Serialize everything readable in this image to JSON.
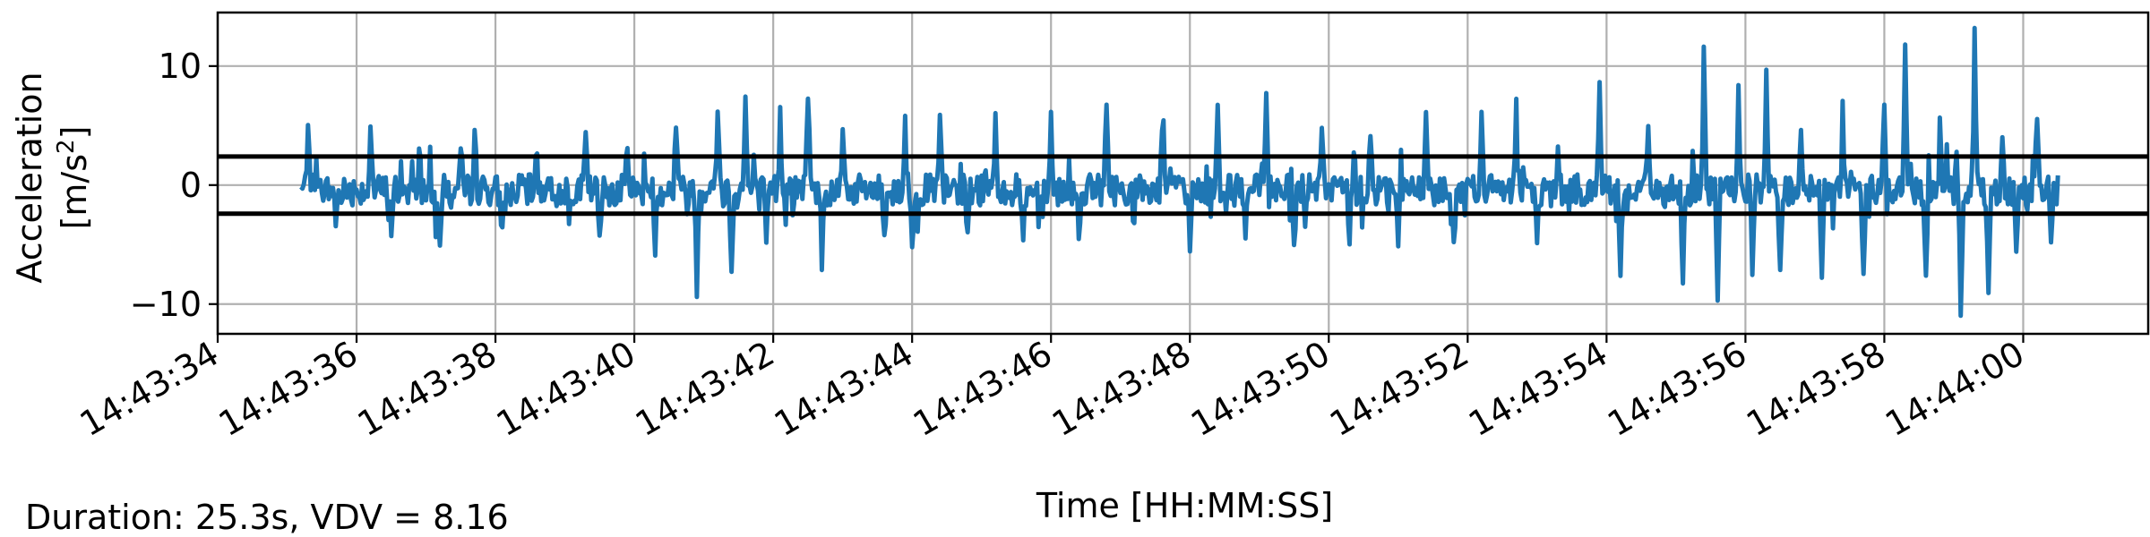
{
  "chart_data": {
    "type": "line",
    "title": "",
    "xlabel": "Time [HH:MM:SS]",
    "ylabel": "Acceleration",
    "ylabel_unit": "[m/s",
    "ylabel_unit_sup": "2",
    "ylabel_unit_close": "]",
    "ylim": [
      -12.5,
      14.5
    ],
    "xlim": [
      "14:43:34.0",
      "14:44:01.8"
    ],
    "grid": true,
    "yticks": [
      -10,
      0,
      10
    ],
    "ytick_labels": [
      "−10",
      "0",
      "10"
    ],
    "xtick_labels": [
      "14:43:34",
      "14:43:36",
      "14:43:38",
      "14:43:40",
      "14:43:42",
      "14:43:44",
      "14:43:46",
      "14:43:48",
      "14:43:50",
      "14:43:52",
      "14:43:54",
      "14:43:56",
      "14:43:58",
      "14:44:00"
    ],
    "series_color": "#1f77b4",
    "thresholds": [
      2.4,
      -2.4
    ],
    "threshold_color": "#000000",
    "time_start": "14:43:35.2",
    "time_end": "14:44:00.5",
    "sample_interval_s": 0.02,
    "peaks": [
      {
        "t": "14:43:35.3",
        "v": 6.2
      },
      {
        "t": "14:43:35.7",
        "v": -2.8
      },
      {
        "t": "14:43:36.2",
        "v": 5.9
      },
      {
        "t": "14:43:36.5",
        "v": -3.2
      },
      {
        "t": "14:43:36.9",
        "v": 4.6
      },
      {
        "t": "14:43:37.2",
        "v": -4.2
      },
      {
        "t": "14:43:37.5",
        "v": 3.4
      },
      {
        "t": "14:43:37.7",
        "v": 6.3
      },
      {
        "t": "14:43:38.1",
        "v": -3.8
      },
      {
        "t": "14:43:38.6",
        "v": 3.9
      },
      {
        "t": "14:43:39.3",
        "v": 4.4
      },
      {
        "t": "14:43:39.5",
        "v": -4.9
      },
      {
        "t": "14:43:39.9",
        "v": 5.4
      },
      {
        "t": "14:43:40.3",
        "v": -4.4
      },
      {
        "t": "14:43:40.6",
        "v": 6.2
      },
      {
        "t": "14:43:40.9",
        "v": -7.7
      },
      {
        "t": "14:43:41.2",
        "v": 7.9
      },
      {
        "t": "14:43:41.4",
        "v": -6.3
      },
      {
        "t": "14:43:41.6",
        "v": 7.6
      },
      {
        "t": "14:43:41.9",
        "v": -5.6
      },
      {
        "t": "14:43:42.1",
        "v": 5.8
      },
      {
        "t": "14:43:42.5",
        "v": 8.2
      },
      {
        "t": "14:43:42.7",
        "v": -5.9
      },
      {
        "t": "14:43:43.0",
        "v": 6.1
      },
      {
        "t": "14:43:43.6",
        "v": -4.1
      },
      {
        "t": "14:43:43.9",
        "v": 5.6
      },
      {
        "t": "14:43:44.0",
        "v": -5.3
      },
      {
        "t": "14:43:44.4",
        "v": 5.9
      },
      {
        "t": "14:43:44.8",
        "v": -4.5
      },
      {
        "t": "14:43:45.2",
        "v": 5.8
      },
      {
        "t": "14:43:45.6",
        "v": -4.9
      },
      {
        "t": "14:43:46.0",
        "v": 6.0
      },
      {
        "t": "14:43:46.4",
        "v": -4.8
      },
      {
        "t": "14:43:46.8",
        "v": 7.8
      },
      {
        "t": "14:43:47.2",
        "v": -3.8
      },
      {
        "t": "14:43:47.6",
        "v": 5.7
      },
      {
        "t": "14:43:48.0",
        "v": -4.9
      },
      {
        "t": "14:43:48.4",
        "v": 7.0
      },
      {
        "t": "14:43:48.8",
        "v": -4.1
      },
      {
        "t": "14:43:49.1",
        "v": 7.7
      },
      {
        "t": "14:43:49.5",
        "v": -5.2
      },
      {
        "t": "14:43:49.9",
        "v": 4.8
      },
      {
        "t": "14:43:50.3",
        "v": -3.8
      },
      {
        "t": "14:43:50.6",
        "v": 5.1
      },
      {
        "t": "14:43:51.0",
        "v": -4.6
      },
      {
        "t": "14:43:51.4",
        "v": 6.1
      },
      {
        "t": "14:43:51.8",
        "v": -4.4
      },
      {
        "t": "14:43:52.2",
        "v": 5.7
      },
      {
        "t": "14:43:52.7",
        "v": 8.8
      },
      {
        "t": "14:43:53.0",
        "v": -5.4
      },
      {
        "t": "14:43:53.3",
        "v": 4.4
      },
      {
        "t": "14:43:53.9",
        "v": 8.6
      },
      {
        "t": "14:43:54.2",
        "v": -6.2
      },
      {
        "t": "14:43:54.6",
        "v": 5.2
      },
      {
        "t": "14:43:55.1",
        "v": -8.7
      },
      {
        "t": "14:43:55.4",
        "v": 11.7
      },
      {
        "t": "14:43:55.6",
        "v": -9.2
      },
      {
        "t": "14:43:55.9",
        "v": 8.6
      },
      {
        "t": "14:43:56.1",
        "v": -7.9
      },
      {
        "t": "14:43:56.3",
        "v": 10.4
      },
      {
        "t": "14:43:56.5",
        "v": -6.8
      },
      {
        "t": "14:43:56.8",
        "v": 6.6
      },
      {
        "t": "14:43:57.1",
        "v": -7.3
      },
      {
        "t": "14:43:57.4",
        "v": 6.2
      },
      {
        "t": "14:43:57.7",
        "v": -8.1
      },
      {
        "t": "14:43:58.0",
        "v": 7.6
      },
      {
        "t": "14:43:58.3",
        "v": 11.6
      },
      {
        "t": "14:43:58.6",
        "v": -8.3
      },
      {
        "t": "14:43:58.8",
        "v": 7.2
      },
      {
        "t": "14:43:59.1",
        "v": -10.8
      },
      {
        "t": "14:43:59.3",
        "v": 13.2
      },
      {
        "t": "14:43:59.5",
        "v": -7.9
      },
      {
        "t": "14:43:59.7",
        "v": 4.1
      },
      {
        "t": "14:43:59.9",
        "v": -5.9
      },
      {
        "t": "14:44:00.2",
        "v": 6.4
      },
      {
        "t": "14:44:00.4",
        "v": -4.1
      }
    ]
  },
  "footnote": "Duration: 25.3s, VDV = 8.16"
}
